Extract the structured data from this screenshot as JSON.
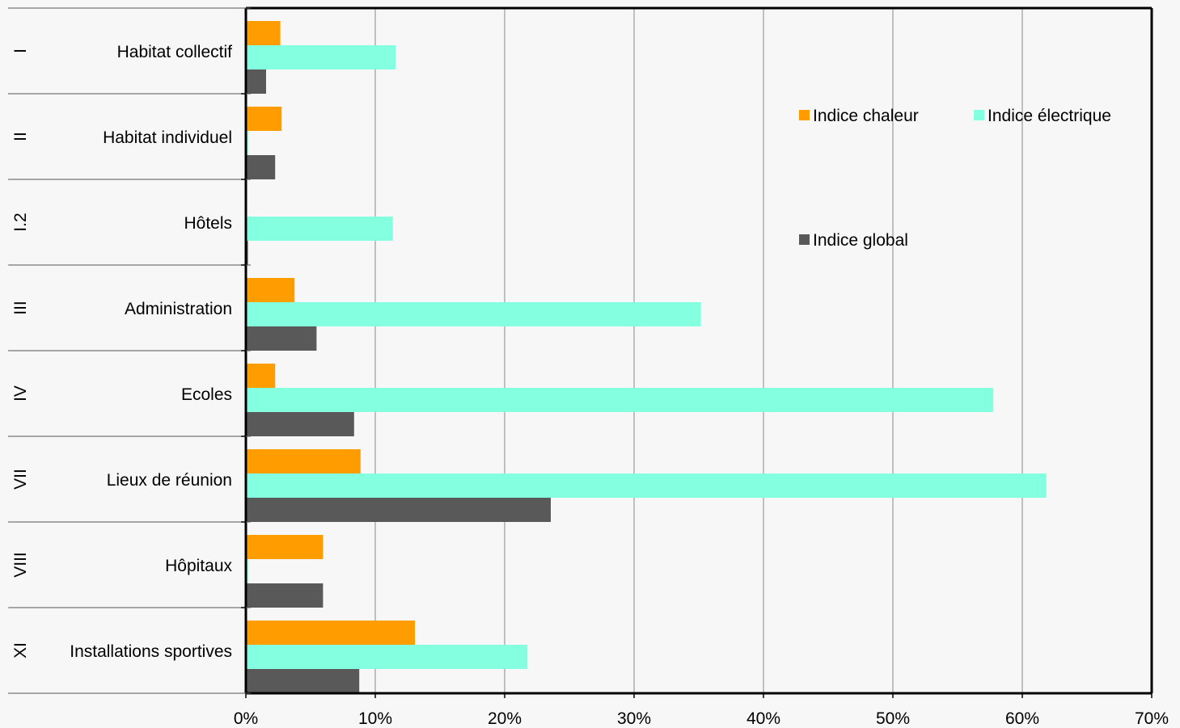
{
  "chart_data": {
    "type": "bar",
    "orientation": "horizontal",
    "title": "",
    "xlabel": "",
    "ylabel": "",
    "xlim": [
      0,
      70
    ],
    "x_ticks": [
      "0%",
      "10%",
      "20%",
      "30%",
      "40%",
      "50%",
      "60%",
      "70%"
    ],
    "grid": true,
    "legend_position": "top-right",
    "groups": [
      "I",
      "II",
      "I.2",
      "III",
      "IV",
      "VII",
      "VIII",
      "XI"
    ],
    "categories": [
      "Habitat collectif",
      "Habitat individuel",
      "Hôtels",
      "Administration",
      "Ecoles",
      "Lieux de réunion",
      "Hôpitaux",
      "Installations sportives"
    ],
    "series": [
      {
        "name": "Indice chaleur",
        "color": "#ff9c00",
        "values": [
          2.6,
          2.7,
          0,
          3.7,
          2.2,
          8.8,
          5.9,
          13.0
        ]
      },
      {
        "name": "Indice électrique",
        "color": "#84ffdf",
        "values": [
          11.5,
          0.1,
          11.3,
          35.1,
          57.7,
          61.8,
          0.1,
          21.7
        ]
      },
      {
        "name": "Indice global",
        "color": "#595959",
        "values": [
          1.5,
          2.2,
          0.1,
          5.4,
          8.3,
          23.5,
          5.9,
          8.7
        ]
      }
    ]
  }
}
